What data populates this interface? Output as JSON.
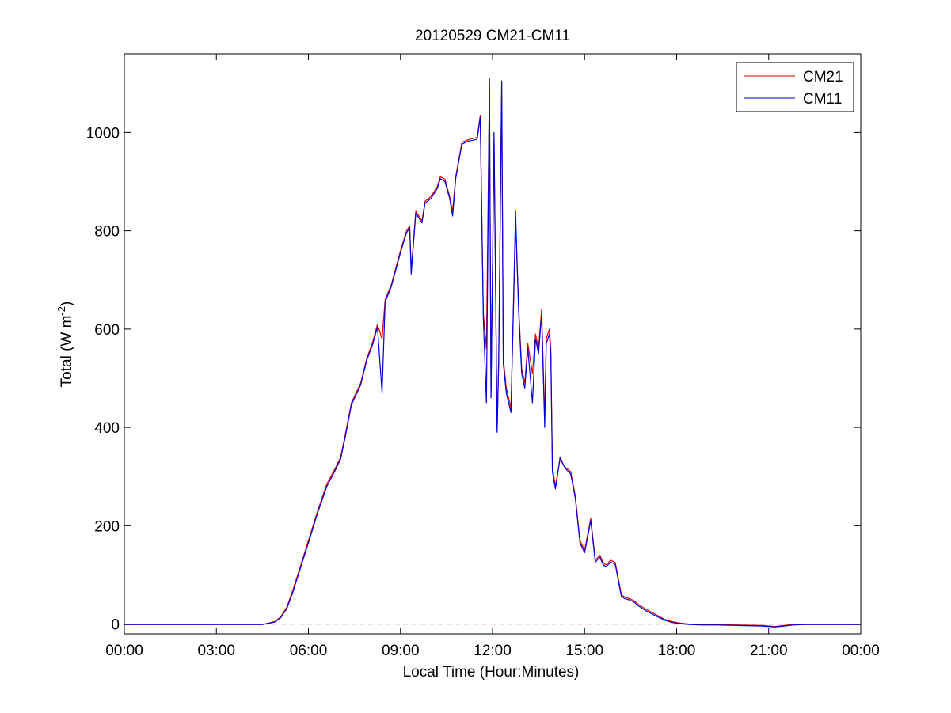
{
  "chart_data": {
    "type": "line",
    "title": "20120529 CM21-CM11",
    "xlabel": "Local Time (Hour:Minutes)",
    "ylabel": {
      "prefix": "Total (W m",
      "superscript": "-2",
      "suffix": ")"
    },
    "x_ticks": [
      "00:00",
      "03:00",
      "06:00",
      "09:00",
      "12:00",
      "15:00",
      "18:00",
      "21:00",
      "00:00"
    ],
    "x_tick_hours": [
      0,
      3,
      6,
      9,
      12,
      15,
      18,
      21,
      24
    ],
    "y_ticks": [
      "0",
      "200",
      "400",
      "600",
      "800",
      "1000"
    ],
    "y_tick_values": [
      0,
      200,
      400,
      600,
      800,
      1000
    ],
    "xlim_hours": [
      0,
      24
    ],
    "ylim": [
      -20,
      1160
    ],
    "grid": false,
    "legend_position": "top-right",
    "reference_line": {
      "y": 0,
      "style": "dashed",
      "color": "#c00000"
    },
    "colors": {
      "CM21": "#e00000",
      "CM11": "#0000e0"
    },
    "series": [
      {
        "name": "CM21",
        "x_hours": [
          0,
          4.5,
          4.9,
          5.1,
          5.3,
          5.5,
          5.7,
          6.0,
          6.3,
          6.6,
          6.9,
          7.05,
          7.2,
          7.4,
          7.7,
          7.9,
          8.1,
          8.25,
          8.4,
          8.5,
          8.7,
          9.0,
          9.2,
          9.3,
          9.35,
          9.5,
          9.7,
          9.8,
          10.0,
          10.2,
          10.3,
          10.45,
          10.6,
          10.7,
          10.8,
          11.0,
          11.2,
          11.5,
          11.6,
          11.7,
          11.8,
          11.9,
          11.95,
          12.05,
          12.15,
          12.2,
          12.3,
          12.35,
          12.45,
          12.6,
          12.75,
          12.85,
          12.95,
          13.05,
          13.15,
          13.3,
          13.4,
          13.5,
          13.6,
          13.7,
          13.75,
          13.85,
          13.9,
          13.95,
          14.05,
          14.1,
          14.2,
          14.35,
          14.55,
          14.7,
          14.85,
          15.0,
          15.2,
          15.35,
          15.5,
          15.6,
          15.7,
          15.85,
          16.0,
          16.2,
          16.3,
          16.45,
          16.6,
          16.75,
          17.0,
          17.3,
          17.6,
          17.85,
          18.1,
          18.4,
          18.8,
          19.3,
          20.0,
          20.8,
          21.2,
          21.5,
          21.8,
          22.2,
          23.0,
          24.0
        ],
        "values": [
          -1,
          -1,
          5,
          15,
          35,
          70,
          110,
          170,
          230,
          285,
          320,
          340,
          385,
          450,
          490,
          540,
          575,
          610,
          580,
          660,
          690,
          760,
          800,
          810,
          720,
          840,
          820,
          860,
          870,
          890,
          910,
          905,
          870,
          840,
          910,
          980,
          985,
          990,
          1035,
          630,
          560,
          1105,
          470,
          980,
          395,
          540,
          1100,
          540,
          480,
          440,
          810,
          650,
          520,
          490,
          570,
          510,
          590,
          560,
          640,
          420,
          580,
          600,
          560,
          320,
          280,
          300,
          335,
          320,
          310,
          260,
          170,
          150,
          215,
          130,
          140,
          125,
          120,
          130,
          125,
          60,
          55,
          52,
          48,
          40,
          30,
          20,
          10,
          5,
          2,
          0,
          -1,
          -1,
          -2,
          -3,
          -5,
          -3,
          -1,
          -1,
          -1,
          -1
        ]
      },
      {
        "name": "CM11",
        "x_hours": [
          0,
          4.5,
          4.9,
          5.1,
          5.3,
          5.5,
          5.7,
          6.0,
          6.3,
          6.6,
          6.9,
          7.05,
          7.2,
          7.4,
          7.7,
          7.9,
          8.1,
          8.25,
          8.4,
          8.5,
          8.7,
          9.0,
          9.2,
          9.3,
          9.35,
          9.5,
          9.7,
          9.8,
          10.0,
          10.2,
          10.3,
          10.45,
          10.6,
          10.7,
          10.8,
          11.0,
          11.2,
          11.5,
          11.6,
          11.7,
          11.8,
          11.9,
          11.95,
          12.05,
          12.15,
          12.2,
          12.3,
          12.35,
          12.45,
          12.6,
          12.75,
          12.85,
          12.95,
          13.05,
          13.15,
          13.3,
          13.4,
          13.5,
          13.6,
          13.7,
          13.75,
          13.85,
          13.9,
          13.95,
          14.05,
          14.1,
          14.2,
          14.35,
          14.55,
          14.7,
          14.85,
          15.0,
          15.2,
          15.35,
          15.5,
          15.6,
          15.7,
          15.85,
          16.0,
          16.2,
          16.3,
          16.45,
          16.6,
          16.75,
          17.0,
          17.3,
          17.6,
          17.85,
          18.1,
          18.4,
          18.8,
          19.3,
          20.0,
          20.8,
          21.2,
          21.5,
          21.8,
          22.2,
          23.0,
          24.0
        ],
        "values": [
          -1,
          -1,
          4,
          13,
          32,
          66,
          106,
          165,
          226,
          280,
          316,
          336,
          380,
          446,
          486,
          536,
          570,
          605,
          470,
          655,
          686,
          756,
          796,
          806,
          712,
          836,
          816,
          856,
          866,
          886,
          906,
          900,
          866,
          830,
          906,
          976,
          982,
          986,
          1030,
          620,
          450,
          1110,
          460,
          1000,
          390,
          530,
          1105,
          530,
          470,
          430,
          840,
          640,
          510,
          480,
          560,
          450,
          580,
          550,
          630,
          400,
          570,
          590,
          550,
          310,
          275,
          295,
          340,
          318,
          305,
          255,
          165,
          145,
          210,
          126,
          136,
          121,
          116,
          126,
          121,
          56,
          52,
          49,
          45,
          37,
          27,
          17,
          8,
          3,
          1,
          -1,
          -2,
          -2,
          -3,
          -4,
          -6,
          -4,
          -2,
          -1,
          -1,
          -1
        ]
      }
    ]
  }
}
